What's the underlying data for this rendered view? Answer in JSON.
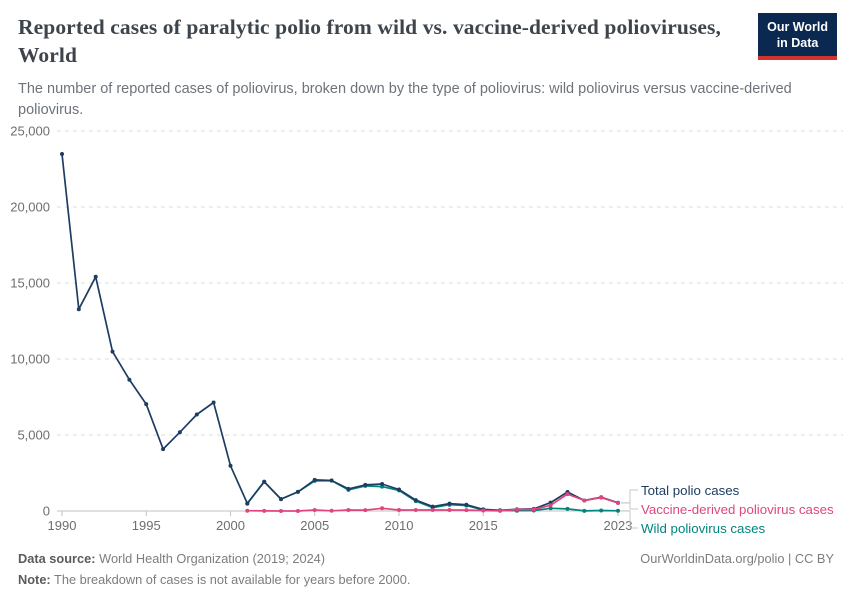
{
  "header": {
    "title": "Reported cases of paralytic polio from wild vs. vaccine-derived polioviruses, World",
    "subtitle": "The number of reported cases of poliovirus, broken down by the type of poliovirus: wild poliovirus versus vaccine-derived poliovirus.",
    "logo": {
      "line1": "Our World",
      "line2": "in Data",
      "bg_color": "#0a2850",
      "accent_color": "#d0342c"
    }
  },
  "chart_data": {
    "type": "line",
    "title": "Reported cases of paralytic polio from wild vs. vaccine-derived polioviruses, World",
    "xlabel": "",
    "ylabel": "",
    "x": [
      1990,
      1991,
      1992,
      1993,
      1994,
      1995,
      1996,
      1997,
      1998,
      1999,
      2000,
      2001,
      2002,
      2003,
      2004,
      2005,
      2006,
      2007,
      2008,
      2009,
      2010,
      2011,
      2012,
      2013,
      2014,
      2015,
      2016,
      2017,
      2018,
      2019,
      2020,
      2021,
      2022,
      2023
    ],
    "series": [
      {
        "name": "Wild poliovirus cases",
        "color": "#00847e",
        "start_year": 2001,
        "values": [
          483,
          1918,
          784,
          1255,
          1979,
          1997,
          1387,
          1652,
          1604,
          1352,
          650,
          223,
          416,
          359,
          74,
          37,
          22,
          33,
          176,
          140,
          6,
          30,
          12
        ]
      },
      {
        "name": "Total polio cases",
        "color": "#1d3d63",
        "start_year": 1990,
        "values": [
          23484,
          13274,
          15406,
          10487,
          8635,
          7035,
          4074,
          5185,
          6349,
          7141,
          2971,
          502,
          1927,
          786,
          1258,
          2045,
          2009,
          1456,
          1714,
          1779,
          1415,
          716,
          291,
          484,
          415,
          106,
          42,
          118,
          137,
          554,
          1253,
          694,
          911,
          539
        ]
      },
      {
        "name": "Vaccine-derived poliovirus cases",
        "color": "#e0457f",
        "start_year": 2001,
        "values": [
          19,
          9,
          2,
          3,
          66,
          12,
          69,
          62,
          175,
          63,
          66,
          68,
          68,
          56,
          32,
          5,
          96,
          104,
          378,
          1113,
          688,
          881,
          527
        ]
      }
    ],
    "ylim": [
      0,
      25000
    ],
    "yticks": [
      0,
      5000,
      10000,
      15000,
      20000,
      25000
    ],
    "ytick_labels": [
      "0",
      "5,000",
      "10,000",
      "15,000",
      "20,000",
      "25,000"
    ],
    "xticks": [
      1990,
      1995,
      2000,
      2005,
      2010,
      2015,
      2023
    ],
    "grid": "horizontal-dashed",
    "legend_position": "right-of-line-ends",
    "grid_color": "#dcdcdc",
    "axis_color": "#c2c2c2",
    "tick_label_color": "#6e6e6e",
    "connector_color": "#c8c8c8"
  },
  "legend": {
    "entries": [
      {
        "label": "Total polio cases",
        "color": "#1d3d63"
      },
      {
        "label": "Vaccine-derived poliovirus cases",
        "color": "#e0457f"
      },
      {
        "label": "Wild poliovirus cases",
        "color": "#00847e"
      }
    ]
  },
  "footer": {
    "source_label": "Data source:",
    "source_text": "World Health Organization (2019; 2024)",
    "note_label": "Note:",
    "note_text": "The breakdown of cases is not available for years before 2000.",
    "link_text": "OurWorldinData.org/polio | CC BY"
  }
}
